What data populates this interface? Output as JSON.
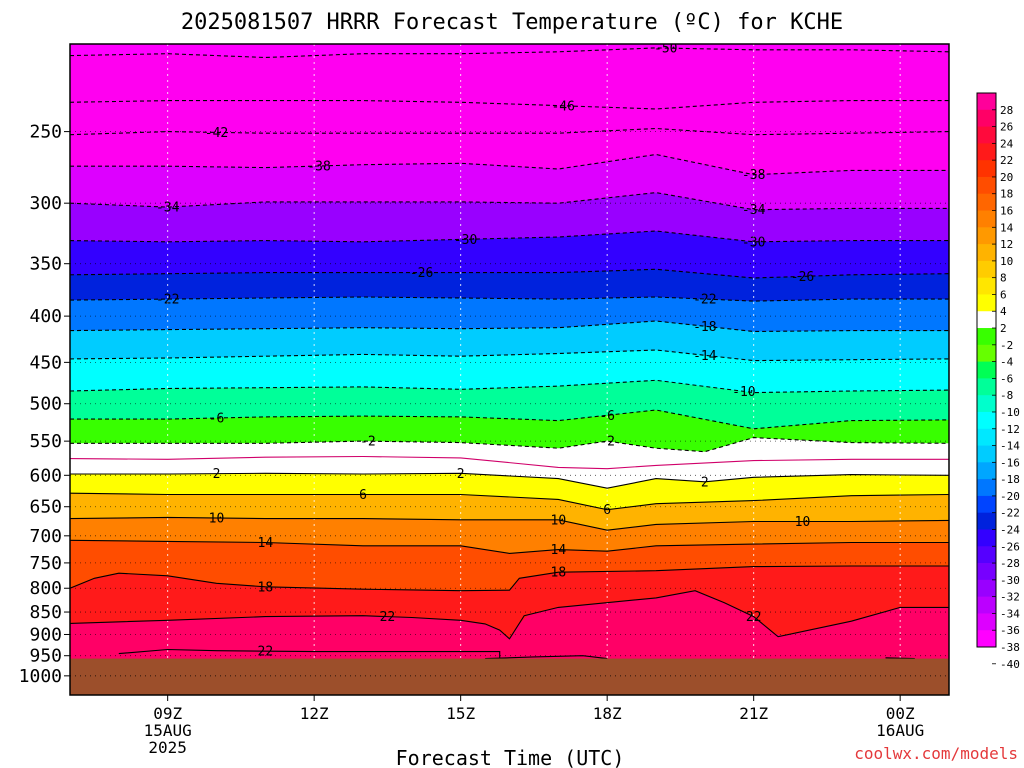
{
  "chart_data": {
    "type": "heatmap",
    "title": "2025081507 HRRR Forecast Temperature (ºC) for KCHE",
    "xlabel": "Forecast Time (UTC)",
    "ylabel": "",
    "credit": "coolwx.com/models",
    "x_ticks": [
      {
        "hour": 9,
        "lines": [
          "09Z",
          "15AUG",
          "2025"
        ]
      },
      {
        "hour": 12,
        "lines": [
          "12Z"
        ]
      },
      {
        "hour": 15,
        "lines": [
          "15Z"
        ]
      },
      {
        "hour": 18,
        "lines": [
          "18Z"
        ]
      },
      {
        "hour": 21,
        "lines": [
          "21Z"
        ]
      },
      {
        "hour": 24,
        "lines": [
          "00Z",
          "16AUG"
        ]
      }
    ],
    "xlim_hours": [
      7,
      25
    ],
    "y_ticks": [
      250,
      300,
      350,
      400,
      450,
      500,
      550,
      600,
      650,
      700,
      750,
      800,
      850,
      900,
      950,
      1000
    ],
    "ylim_hpa": [
      200,
      1050
    ],
    "y_scale": "log-pressure",
    "grid": true,
    "surface_pressure_hpa": 957,
    "surface_color": "#9c4f2b",
    "colorbar": {
      "ticks": [
        "28",
        "26",
        "24",
        "22",
        "20",
        "18",
        "16",
        "14",
        "12",
        "10",
        "8",
        "6",
        "4",
        "2",
        "-2",
        "-4",
        "-6",
        "-8",
        "-10",
        "-12",
        "-14",
        "-16",
        "-18",
        "-20",
        "-22",
        "-24",
        "-26",
        "-28",
        "-30",
        "-32",
        "-34",
        "-36",
        "-38",
        "-40"
      ],
      "colors": [
        "#ff009a",
        "#ff0066",
        "#ff0a3c",
        "#ff1a1a",
        "#ff3300",
        "#ff4d00",
        "#ff6600",
        "#ff8000",
        "#ff9900",
        "#ffb300",
        "#ffcc00",
        "#ffe600",
        "#ffff00",
        "#ffffff",
        "#38ff00",
        "#66ff00",
        "#00ff55",
        "#00ff99",
        "#00ffcc",
        "#00ffff",
        "#00e8ff",
        "#00ccff",
        "#00a6ff",
        "#0077ff",
        "#0044ff",
        "#0022dd",
        "#3300ff",
        "#5500ff",
        "#7700ff",
        "#9900ff",
        "#bb00ff",
        "#dd00ff",
        "#ff00ff"
      ]
    },
    "series": [
      {
        "temp": -50,
        "hours": [
          7,
          9,
          11,
          13,
          15,
          17,
          19,
          21,
          23,
          25
        ],
        "pressure_hpa": [
          206,
          205,
          207,
          205,
          205,
          204,
          202,
          203,
          203,
          204
        ],
        "labels": [
          {
            "text": "-50",
            "hour": 19.2
          }
        ]
      },
      {
        "temp": -46,
        "hours": [
          7,
          9,
          11,
          13,
          15,
          17,
          19,
          21,
          23,
          25
        ],
        "pressure_hpa": [
          232,
          231,
          231,
          231,
          232,
          234,
          236,
          232,
          231,
          231
        ],
        "labels": [
          {
            "text": "-46",
            "hour": 17.1
          }
        ]
      },
      {
        "temp": -42,
        "hours": [
          7,
          9,
          11,
          13,
          15,
          17,
          19,
          21,
          23,
          25
        ],
        "pressure_hpa": [
          252,
          250,
          251,
          251,
          251,
          251,
          248,
          252,
          251,
          250
        ],
        "labels": [
          {
            "text": "-42",
            "hour": 10
          }
        ]
      },
      {
        "temp": -38,
        "hours": [
          7,
          9,
          11,
          13,
          15,
          17,
          19,
          21,
          23,
          25
        ],
        "pressure_hpa": [
          273,
          273,
          274,
          272,
          271,
          275,
          265,
          279,
          276,
          276
        ],
        "labels": [
          {
            "text": "-38",
            "hour": 12.1
          },
          {
            "text": "-38",
            "hour": 21
          }
        ]
      },
      {
        "temp": -34,
        "hours": [
          7,
          9,
          11,
          13,
          15,
          17,
          19,
          21,
          23,
          25
        ],
        "pressure_hpa": [
          300,
          303,
          299,
          299,
          299,
          300,
          292,
          305,
          304,
          304
        ],
        "labels": [
          {
            "text": "-34",
            "hour": 9
          },
          {
            "text": "-34",
            "hour": 21
          }
        ]
      },
      {
        "temp": -30,
        "hours": [
          7,
          9,
          11,
          13,
          15,
          17,
          19,
          21,
          23,
          25
        ],
        "pressure_hpa": [
          330,
          331,
          330,
          331,
          329,
          327,
          322,
          331,
          330,
          330
        ],
        "labels": [
          {
            "text": "-30",
            "hour": 15.1
          },
          {
            "text": "-30",
            "hour": 21
          }
        ]
      },
      {
        "temp": -26,
        "hours": [
          7,
          9,
          11,
          13,
          15,
          17,
          19,
          21,
          23,
          25
        ],
        "pressure_hpa": [
          360,
          359,
          358,
          358,
          358,
          358,
          355,
          363,
          360,
          359
        ],
        "labels": [
          {
            "text": "-26",
            "hour": 14.2
          },
          {
            "text": "-26",
            "hour": 22
          }
        ]
      },
      {
        "temp": -22,
        "hours": [
          7,
          9,
          11,
          13,
          15,
          17,
          19,
          21,
          23,
          25
        ],
        "pressure_hpa": [
          384,
          383,
          382,
          381,
          382,
          383,
          381,
          385,
          383,
          383
        ],
        "labels": [
          {
            "text": "-22",
            "hour": 9
          },
          {
            "text": "-22",
            "hour": 20
          }
        ]
      },
      {
        "temp": -18,
        "hours": [
          7,
          9,
          11,
          13,
          15,
          17,
          19,
          21,
          23,
          25
        ],
        "pressure_hpa": [
          415,
          414,
          413,
          412,
          413,
          412,
          405,
          416,
          415,
          415
        ],
        "labels": [
          {
            "text": "-18",
            "hour": 20
          }
        ]
      },
      {
        "temp": -14,
        "hours": [
          7,
          9,
          11,
          13,
          15,
          17,
          19,
          21,
          23,
          25
        ],
        "pressure_hpa": [
          446,
          445,
          443,
          441,
          443,
          440,
          436,
          448,
          447,
          446
        ],
        "labels": [
          {
            "text": "-14",
            "hour": 20
          }
        ]
      },
      {
        "temp": -10,
        "hours": [
          7,
          9,
          11,
          13,
          15,
          17,
          19,
          21,
          23,
          25
        ],
        "pressure_hpa": [
          484,
          481,
          480,
          479,
          482,
          478,
          471,
          486,
          484,
          483
        ],
        "labels": [
          {
            "text": "-10",
            "hour": 20.8
          }
        ]
      },
      {
        "temp": -6,
        "hours": [
          7,
          9,
          11,
          13,
          15,
          17,
          19,
          21,
          23,
          25
        ],
        "pressure_hpa": [
          520,
          520,
          517,
          516,
          517,
          522,
          508,
          533,
          522,
          521
        ],
        "labels": [
          {
            "text": "-6",
            "hour": 10
          },
          {
            "text": "-6",
            "hour": 18
          }
        ]
      },
      {
        "temp": -2,
        "hours": [
          7,
          9,
          11,
          13,
          15,
          17,
          18,
          19,
          20,
          21,
          23,
          25
        ],
        "pressure_hpa": [
          553,
          553,
          553,
          550,
          552,
          560,
          550,
          560,
          565,
          545,
          552,
          553
        ],
        "labels": [
          {
            "text": "-2",
            "hour": 13.1
          },
          {
            "text": "-2",
            "hour": 18
          }
        ]
      },
      {
        "temp": 0,
        "hours": [
          7,
          9,
          11,
          13,
          15,
          17,
          18,
          19,
          21,
          23,
          25
        ],
        "pressure_hpa": [
          575,
          576,
          573,
          572,
          574,
          588,
          590,
          585,
          578,
          576,
          576
        ],
        "labels": []
      },
      {
        "temp": 2,
        "hours": [
          7,
          9,
          11,
          13,
          15,
          17,
          18,
          19,
          20,
          21,
          23,
          25
        ],
        "pressure_hpa": [
          598,
          598,
          597,
          598,
          597,
          605,
          620,
          605,
          610,
          603,
          599,
          600
        ],
        "labels": [
          {
            "text": "2",
            "hour": 10
          },
          {
            "text": "2",
            "hour": 15
          },
          {
            "text": "2",
            "hour": 20
          }
        ]
      },
      {
        "temp": 6,
        "hours": [
          7,
          9,
          11,
          13,
          15,
          17,
          18,
          19,
          21,
          23,
          25
        ],
        "pressure_hpa": [
          628,
          630,
          630,
          630,
          630,
          638,
          655,
          645,
          640,
          632,
          630
        ],
        "labels": [
          {
            "text": "6",
            "hour": 13
          },
          {
            "text": "6",
            "hour": 18
          }
        ]
      },
      {
        "temp": 10,
        "hours": [
          7,
          9,
          11,
          13,
          15,
          17,
          18,
          19,
          21,
          23,
          25
        ],
        "pressure_hpa": [
          670,
          668,
          670,
          670,
          672,
          672,
          690,
          680,
          675,
          675,
          673
        ],
        "labels": [
          {
            "text": "10",
            "hour": 10
          },
          {
            "text": "10",
            "hour": 17
          },
          {
            "text": "10",
            "hour": 22
          }
        ]
      },
      {
        "temp": 14,
        "hours": [
          7,
          9,
          11,
          13,
          15,
          16,
          17,
          18,
          19,
          21,
          23,
          25
        ],
        "pressure_hpa": [
          708,
          710,
          712,
          718,
          718,
          732,
          725,
          728,
          718,
          715,
          712,
          712
        ],
        "labels": [
          {
            "text": "14",
            "hour": 11
          },
          {
            "text": "14",
            "hour": 17
          }
        ]
      },
      {
        "temp": 18,
        "hours": [
          7,
          7.5,
          8,
          9,
          10,
          11,
          13,
          15,
          16,
          16.2,
          17,
          19,
          21,
          23,
          25
        ],
        "pressure_hpa": [
          800,
          780,
          770,
          775,
          790,
          797,
          802,
          805,
          804,
          780,
          768,
          765,
          757,
          756,
          756
        ],
        "labels": [
          {
            "text": "18",
            "hour": 11
          },
          {
            "text": "18",
            "hour": 17
          }
        ]
      },
      {
        "temp": 22,
        "hours": [
          7,
          9,
          11,
          13,
          14,
          15,
          15.5,
          15.8,
          16,
          16.3,
          17,
          19,
          19.8,
          20.4,
          21,
          21.5,
          23,
          24,
          25
        ],
        "pressure_hpa": [
          875,
          868,
          860,
          858,
          862,
          868,
          876,
          890,
          910,
          858,
          840,
          820,
          805,
          830,
          860,
          905,
          870,
          840,
          840
        ],
        "labels": [
          {
            "text": "22",
            "hour": 13.5
          },
          {
            "text": "22",
            "hour": 21
          }
        ]
      },
      {
        "temp": 22,
        "hours": [
          8,
          9,
          10,
          12,
          14,
          15.8,
          15.8
        ],
        "pressure_hpa": [
          945,
          935,
          938,
          940,
          940,
          940,
          955
        ],
        "labels": [
          {
            "text": "22",
            "hour": 11
          }
        ]
      },
      {
        "temp": 22,
        "hours": [
          15.5,
          16.5,
          17.5,
          18
        ],
        "pressure_hpa": [
          957,
          953,
          950,
          957
        ],
        "labels": []
      },
      {
        "temp": 22,
        "hours": [
          23.7,
          24.3
        ],
        "pressure_hpa": [
          955,
          957
        ],
        "labels": []
      }
    ]
  }
}
